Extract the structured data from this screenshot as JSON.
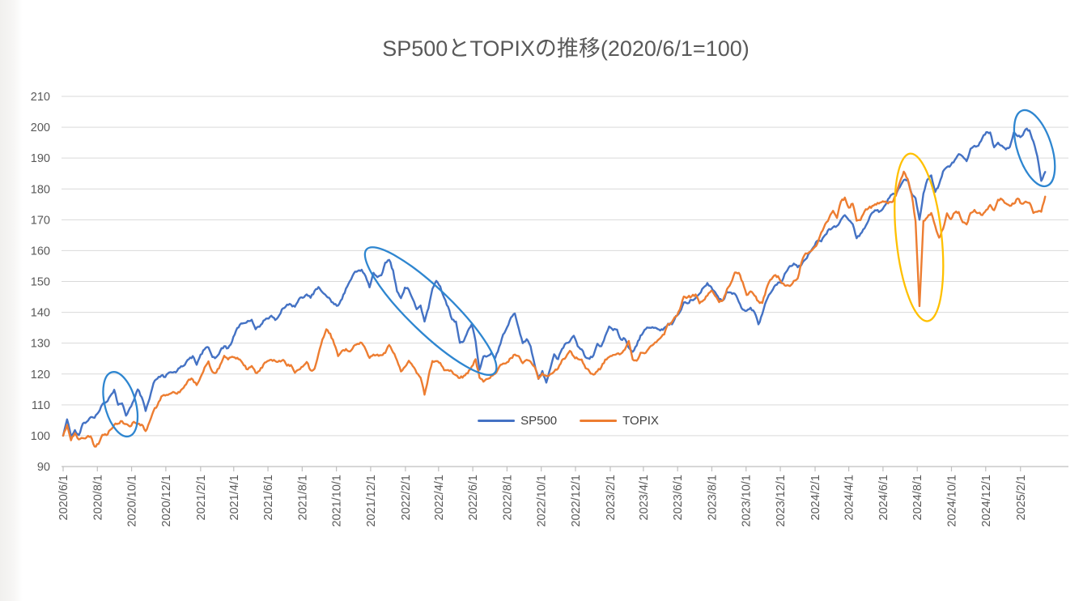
{
  "chart_data": {
    "type": "line",
    "title": "SP500とTOPIXの推移(2020/6/1=100)",
    "x_start_date": "2020-06-01",
    "x_step_days": 7,
    "y_axis": {
      "min": 90,
      "max": 210,
      "step": 10,
      "tick_labels": [
        "90",
        "100",
        "110",
        "120",
        "130",
        "140",
        "150",
        "160",
        "170",
        "180",
        "190",
        "200",
        "210"
      ]
    },
    "x_tick_labels": [
      "2020/6/1",
      "2020/8/1",
      "2020/10/1",
      "2020/12/1",
      "2021/2/1",
      "2021/4/1",
      "2021/6/1",
      "2021/8/1",
      "2021/10/1",
      "2021/12/1",
      "2022/2/1",
      "2022/4/1",
      "2022/6/1",
      "2022/8/1",
      "2022/10/1",
      "2022/12/1",
      "2023/2/1",
      "2023/4/1",
      "2023/6/1",
      "2023/8/1",
      "2023/10/1",
      "2023/12/1",
      "2024/2/1",
      "2024/4/1",
      "2024/6/1",
      "2024/8/1",
      "2024/10/1",
      "2024/12/1",
      "2025/2/1"
    ],
    "grid": "horizontal",
    "legend_position": "inside-bottom-center",
    "series": [
      {
        "name": "SP500",
        "color": "#4472C4",
        "values": [
          100.0,
          105.3,
          100.0,
          101.8,
          100.2,
          103.9,
          104.5,
          106.0,
          105.8,
          107.6,
          110.2,
          110.9,
          112.9,
          114.9,
          110.0,
          110.5,
          106.5,
          109.0,
          111.5,
          115.0,
          112.5,
          108.0,
          112.0,
          117.0,
          118.5,
          119.5,
          119.0,
          120.5,
          120.5,
          121.0,
          122.5,
          123.0,
          124.8,
          125.8,
          123.0,
          126.3,
          128.0,
          128.6,
          125.5,
          125.5,
          127.5,
          129.0,
          128.4,
          130.5,
          134.0,
          136.0,
          136.5,
          137.2,
          137.6,
          134.5,
          135.3,
          137.3,
          138.0,
          138.9,
          137.5,
          139.0,
          141.3,
          142.5,
          142.5,
          141.8,
          144.2,
          144.7,
          145.8,
          144.7,
          146.9,
          148.2,
          146.5,
          145.3,
          144.2,
          142.6,
          142.2,
          144.3,
          147.7,
          150.1,
          152.6,
          153.4,
          153.8,
          151.7,
          148.1,
          152.8,
          151.4,
          152.0,
          156.1,
          157.0,
          153.6,
          146.8,
          144.6,
          148.0,
          147.3,
          144.3,
          141.0,
          142.2,
          137.0,
          141.3,
          147.6,
          150.2,
          148.4,
          144.7,
          141.8,
          137.7,
          137.0,
          130.1,
          130.7,
          133.9,
          136.1,
          130.6,
          121.4,
          125.7,
          125.8,
          126.8,
          125.2,
          128.8,
          132.8,
          135.1,
          138.3,
          139.6,
          134.7,
          130.0,
          131.3,
          129.0,
          123.2,
          118.4,
          121.0,
          117.2,
          121.7,
          126.4,
          124.8,
          128.1,
          130.0,
          130.6,
          132.4,
          129.0,
          128.0,
          125.4,
          124.9,
          126.0,
          129.8,
          129.0,
          132.3,
          135.4,
          134.2,
          134.4,
          131.2,
          131.4,
          128.5,
          127.2,
          129.2,
          132.5,
          134.3,
          135.0,
          135.2,
          134.9,
          134.1,
          134.9,
          136.3,
          136.1,
          138.8,
          140.1,
          143.2,
          142.9,
          144.0,
          144.6,
          146.0,
          148.0,
          149.5,
          148.2,
          146.5,
          144.2,
          143.9,
          146.6,
          146.4,
          146.0,
          143.4,
          140.9,
          140.5,
          141.5,
          140.0,
          136.1,
          139.5,
          143.7,
          146.1,
          148.3,
          149.6,
          150.1,
          153.0,
          155.0,
          155.8,
          154.6,
          155.5,
          157.2,
          159.3,
          161.1,
          163.2,
          163.0,
          165.1,
          167.0,
          167.6,
          168.0,
          170.0,
          171.5,
          169.9,
          168.6,
          164.0,
          165.5,
          167.2,
          169.7,
          172.3,
          173.0,
          172.8,
          174.3,
          176.7,
          178.2,
          178.1,
          180.6,
          182.9,
          183.0,
          178.5,
          177.0,
          170.0,
          178.5,
          183.0,
          184.4,
          179.0,
          181.5,
          185.7,
          187.1,
          187.8,
          189.4,
          191.3,
          190.5,
          189.0,
          193.0,
          194.0,
          194.0,
          196.5,
          198.4,
          198.3,
          193.5,
          195.0,
          194.0,
          192.8,
          193.6,
          198.3,
          197.1,
          197.1,
          199.3,
          199.0,
          195.4,
          190.6,
          182.6,
          185.5
        ]
      },
      {
        "name": "TOPIX",
        "color": "#ED7D31",
        "values": [
          100.0,
          103.5,
          98.5,
          100.8,
          98.8,
          99.2,
          99.5,
          99.8,
          96.5,
          97.3,
          100.3,
          100.2,
          101.9,
          103.5,
          103.9,
          104.7,
          103.8,
          103.0,
          104.5,
          103.8,
          103.6,
          101.5,
          104.5,
          108.0,
          109.8,
          112.7,
          113.0,
          113.5,
          114.2,
          113.6,
          114.8,
          116.3,
          118.2,
          118.2,
          116.4,
          119.0,
          122.1,
          124.1,
          120.7,
          120.5,
          123.0,
          125.9,
          124.7,
          125.6,
          125.0,
          124.7,
          122.8,
          121.5,
          122.6,
          120.4,
          121.0,
          123.1,
          124.2,
          124.6,
          124.2,
          124.3,
          124.6,
          122.7,
          122.9,
          120.4,
          121.4,
          122.4,
          123.9,
          121.2,
          121.7,
          126.5,
          131.2,
          134.5,
          133.1,
          129.7,
          125.8,
          127.5,
          128.1,
          127.3,
          129.1,
          129.8,
          130.1,
          128.0,
          125.2,
          126.3,
          126.3,
          126.1,
          126.8,
          129.4,
          127.0,
          124.4,
          120.8,
          122.3,
          124.3,
          122.6,
          120.3,
          118.8,
          113.3,
          119.1,
          124.2,
          124.2,
          123.6,
          121.2,
          121.3,
          120.8,
          119.6,
          118.7,
          119.4,
          120.2,
          122.4,
          124.8,
          118.8,
          117.5,
          118.4,
          119.4,
          120.1,
          122.3,
          123.4,
          123.8,
          125.2,
          126.3,
          125.8,
          123.5,
          124.6,
          124.0,
          122.4,
          118.5,
          120.2,
          119.4,
          120.0,
          120.8,
          121.8,
          124.5,
          125.5,
          127.5,
          125.7,
          124.9,
          124.7,
          121.9,
          120.8,
          119.8,
          120.9,
          122.2,
          124.7,
          125.5,
          126.2,
          126.6,
          126.6,
          127.9,
          130.7,
          124.7,
          124.3,
          126.9,
          126.7,
          128.1,
          129.3,
          130.3,
          131.6,
          132.8,
          136.2,
          136.9,
          138.6,
          140.9,
          145.1,
          144.9,
          145.2,
          145.8,
          142.9,
          143.9,
          145.4,
          147.0,
          145.3,
          143.3,
          144.0,
          147.5,
          149.5,
          152.9,
          152.8,
          149.8,
          145.6,
          146.8,
          145.4,
          143.6,
          143.0,
          147.5,
          150.5,
          151.9,
          151.7,
          149.4,
          148.6,
          148.5,
          150.2,
          151.0,
          156.3,
          159.1,
          159.6,
          160.7,
          162.3,
          165.9,
          168.6,
          170.6,
          172.9,
          170.6,
          175.9,
          177.2,
          173.9,
          175.2,
          169.7,
          169.9,
          172.7,
          173.7,
          174.5,
          174.9,
          175.6,
          175.8,
          175.3,
          175.7,
          177.8,
          182.2,
          185.6,
          183.2,
          178.2,
          169.5,
          142.0,
          169.6,
          170.8,
          172.2,
          168.0,
          164.2,
          167.0,
          172.1,
          170.2,
          172.3,
          172.5,
          169.2,
          168.5,
          172.2,
          173.2,
          172.2,
          171.5,
          173.2,
          174.8,
          173.1,
          176.5,
          176.6,
          175.3,
          174.5,
          175.2,
          176.9,
          175.2,
          175.9,
          175.5,
          172.2,
          172.6,
          172.6,
          177.5
        ]
      }
    ],
    "annotations": [
      {
        "name": "sep-2020-sp500-dip-circle",
        "shape": "ellipse",
        "color": "#2E86D0",
        "center_date": "2020-09-11",
        "center_value": 110.2,
        "width_days": 55,
        "height_units": 21.5,
        "rotation_deg": -15
      },
      {
        "name": "2022-sp500-decline-circle",
        "shape": "ellipse",
        "color": "#2E86D0",
        "center_date": "2022-03-18",
        "center_value": 140.4,
        "width_days": 317,
        "height_units": 14.2,
        "rotation_deg": 44
      },
      {
        "name": "aug-2024-topix-crash-circle",
        "shape": "ellipse",
        "color": "#FFC000",
        "center_date": "2024-08-04",
        "center_value": 164.3,
        "width_days": 81,
        "height_units": 54.6,
        "rotation_deg": -6
      },
      {
        "name": "early-2025-sp500-drop-circle",
        "shape": "ellipse",
        "color": "#2E86D0",
        "center_date": "2025-02-26",
        "center_value": 193.2,
        "width_days": 61,
        "height_units": 25.7,
        "rotation_deg": -18
      }
    ],
    "colors": {
      "gridline": "#D9D9D9",
      "axis": "#BFBFBF",
      "tick_label": "#595959",
      "title": "#595959",
      "legend_text": "#404040"
    }
  },
  "legend": {
    "items": [
      {
        "label": "SP500"
      },
      {
        "label": "TOPIX"
      }
    ]
  }
}
